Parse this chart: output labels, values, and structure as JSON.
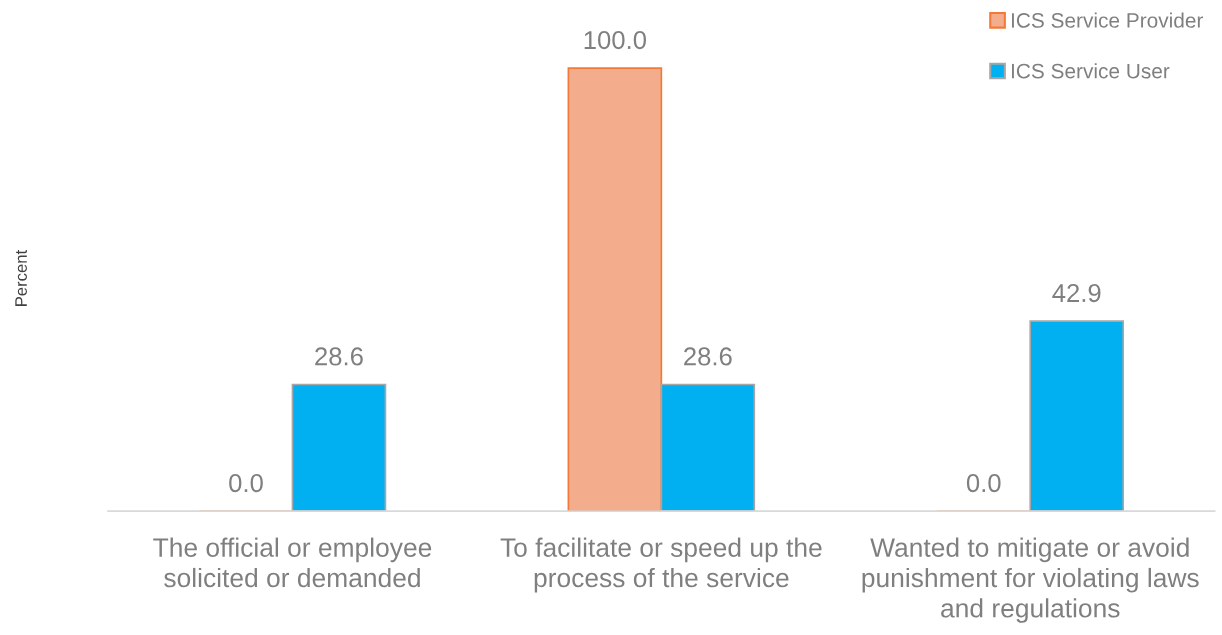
{
  "chart_data": {
    "type": "bar",
    "categories": [
      "The official or employee\nsolicited or demanded",
      "To facilitate or speed up the\nprocess of the service",
      "Wanted to mitigate or avoid\npunishment for violating laws\nand regulations"
    ],
    "ylabel": "Percent",
    "series": [
      {
        "name": "ICS Service Provider",
        "color": "#f4ad8c",
        "values": [
          0.0,
          100.0,
          0.0
        ],
        "value_labels": [
          "0.0",
          "100.0",
          "0.0"
        ]
      },
      {
        "name": "ICS Service User",
        "color": "#00b0f0",
        "values": [
          28.6,
          28.6,
          42.9
        ],
        "value_labels": [
          "28.6",
          "28.6",
          "42.9"
        ]
      }
    ],
    "legend": "top right",
    "grid": false,
    "tick_labels": "x"
  }
}
